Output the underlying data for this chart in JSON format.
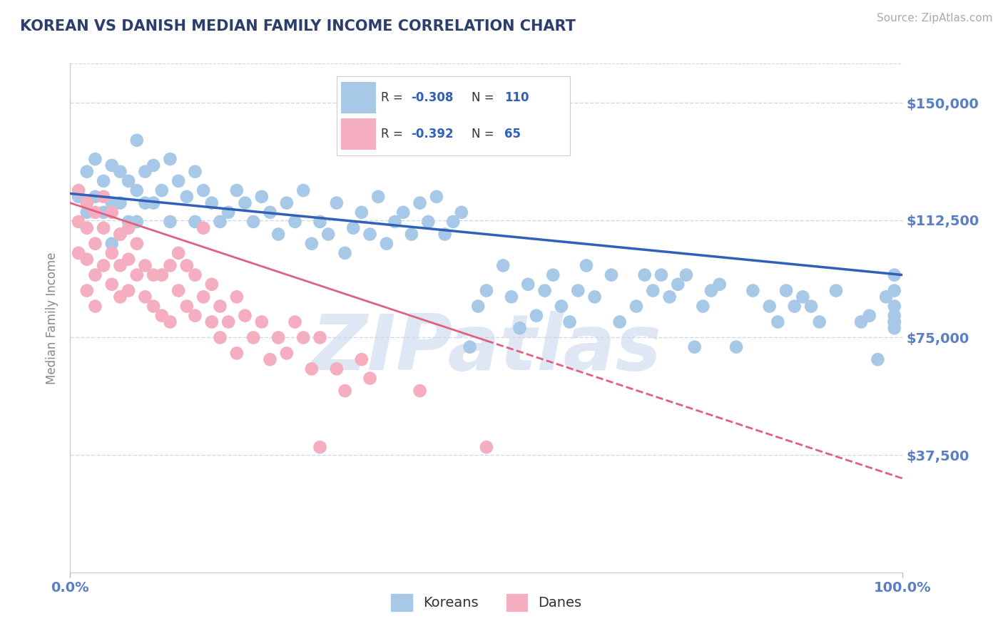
{
  "title": "KOREAN VS DANISH MEDIAN FAMILY INCOME CORRELATION CHART",
  "source_text": "Source: ZipAtlas.com",
  "ylabel": "Median Family Income",
  "xlim": [
    0,
    1
  ],
  "ylim": [
    0,
    162500
  ],
  "ytick_vals": [
    0,
    37500,
    75000,
    112500,
    150000
  ],
  "ytick_labels": [
    "",
    "$37,500",
    "$75,000",
    "$112,500",
    "$150,000"
  ],
  "xtick_positions": [
    0,
    1
  ],
  "xtick_labels": [
    "0.0%",
    "100.0%"
  ],
  "watermark": "ZIPatlas",
  "korean_color": "#a8c8e8",
  "danish_color": "#f5aec0",
  "korean_line_color": "#3060b8",
  "danish_line_color": "#e06080",
  "title_color": "#2c3e6b",
  "axis_label_color": "#5b7fc4",
  "grid_color": "#c8d8ee",
  "bg_color": "#ffffff",
  "korean_label": "Koreans",
  "danish_label": "Danes",
  "legend_R_korean": "-0.308",
  "legend_N_korean": "110",
  "legend_R_danish": "-0.392",
  "legend_N_danish": "65",
  "korean_points_x": [
    0.01,
    0.02,
    0.02,
    0.03,
    0.03,
    0.04,
    0.04,
    0.05,
    0.05,
    0.05,
    0.06,
    0.06,
    0.06,
    0.07,
    0.07,
    0.08,
    0.08,
    0.08,
    0.09,
    0.09,
    0.1,
    0.1,
    0.11,
    0.12,
    0.12,
    0.13,
    0.14,
    0.15,
    0.15,
    0.16,
    0.17,
    0.18,
    0.19,
    0.2,
    0.21,
    0.22,
    0.23,
    0.24,
    0.25,
    0.26,
    0.27,
    0.28,
    0.29,
    0.3,
    0.31,
    0.32,
    0.33,
    0.34,
    0.35,
    0.36,
    0.37,
    0.38,
    0.39,
    0.4,
    0.41,
    0.42,
    0.43,
    0.44,
    0.45,
    0.46,
    0.47,
    0.48,
    0.49,
    0.5,
    0.52,
    0.53,
    0.54,
    0.55,
    0.56,
    0.57,
    0.58,
    0.59,
    0.6,
    0.61,
    0.62,
    0.63,
    0.65,
    0.66,
    0.68,
    0.69,
    0.7,
    0.71,
    0.72,
    0.73,
    0.74,
    0.75,
    0.76,
    0.77,
    0.78,
    0.8,
    0.82,
    0.84,
    0.85,
    0.86,
    0.87,
    0.88,
    0.89,
    0.9,
    0.92,
    0.95,
    0.96,
    0.97,
    0.98,
    0.99,
    0.99,
    0.99,
    0.99,
    0.99,
    0.99,
    0.99
  ],
  "korean_points_y": [
    120000,
    128000,
    115000,
    132000,
    120000,
    125000,
    115000,
    130000,
    118000,
    105000,
    128000,
    118000,
    108000,
    125000,
    112000,
    138000,
    122000,
    112000,
    128000,
    118000,
    130000,
    118000,
    122000,
    132000,
    112000,
    125000,
    120000,
    128000,
    112000,
    122000,
    118000,
    112000,
    115000,
    122000,
    118000,
    112000,
    120000,
    115000,
    108000,
    118000,
    112000,
    122000,
    105000,
    112000,
    108000,
    118000,
    102000,
    110000,
    115000,
    108000,
    120000,
    105000,
    112000,
    115000,
    108000,
    118000,
    112000,
    120000,
    108000,
    112000,
    115000,
    72000,
    85000,
    90000,
    98000,
    88000,
    78000,
    92000,
    82000,
    90000,
    95000,
    85000,
    80000,
    90000,
    98000,
    88000,
    95000,
    80000,
    85000,
    95000,
    90000,
    95000,
    88000,
    92000,
    95000,
    72000,
    85000,
    90000,
    92000,
    72000,
    90000,
    85000,
    80000,
    90000,
    85000,
    88000,
    85000,
    80000,
    90000,
    80000,
    82000,
    68000,
    88000,
    95000,
    90000,
    85000,
    80000,
    82000,
    80000,
    78000
  ],
  "danish_points_x": [
    0.01,
    0.01,
    0.01,
    0.02,
    0.02,
    0.02,
    0.02,
    0.03,
    0.03,
    0.03,
    0.03,
    0.04,
    0.04,
    0.04,
    0.05,
    0.05,
    0.05,
    0.06,
    0.06,
    0.06,
    0.07,
    0.07,
    0.07,
    0.08,
    0.08,
    0.09,
    0.09,
    0.1,
    0.1,
    0.11,
    0.11,
    0.12,
    0.12,
    0.13,
    0.13,
    0.14,
    0.14,
    0.15,
    0.15,
    0.16,
    0.16,
    0.17,
    0.17,
    0.18,
    0.18,
    0.19,
    0.2,
    0.2,
    0.21,
    0.22,
    0.23,
    0.24,
    0.25,
    0.26,
    0.27,
    0.28,
    0.29,
    0.3,
    0.3,
    0.32,
    0.33,
    0.35,
    0.36,
    0.42,
    0.5
  ],
  "danish_points_y": [
    122000,
    112000,
    102000,
    118000,
    110000,
    100000,
    90000,
    115000,
    105000,
    95000,
    85000,
    120000,
    110000,
    98000,
    115000,
    102000,
    92000,
    108000,
    98000,
    88000,
    110000,
    100000,
    90000,
    105000,
    95000,
    98000,
    88000,
    95000,
    85000,
    95000,
    82000,
    98000,
    80000,
    90000,
    102000,
    98000,
    85000,
    95000,
    82000,
    88000,
    110000,
    80000,
    92000,
    85000,
    75000,
    80000,
    88000,
    70000,
    82000,
    75000,
    80000,
    68000,
    75000,
    70000,
    80000,
    75000,
    65000,
    75000,
    40000,
    65000,
    58000,
    68000,
    62000,
    58000,
    40000
  ],
  "korean_trend_x0": 0.0,
  "korean_trend_y0": 121000,
  "korean_trend_x1": 1.0,
  "korean_trend_y1": 95000,
  "danish_trend_x0": 0.0,
  "danish_trend_y0": 118000,
  "danish_trend_x1": 1.0,
  "danish_trend_y1": 30000
}
